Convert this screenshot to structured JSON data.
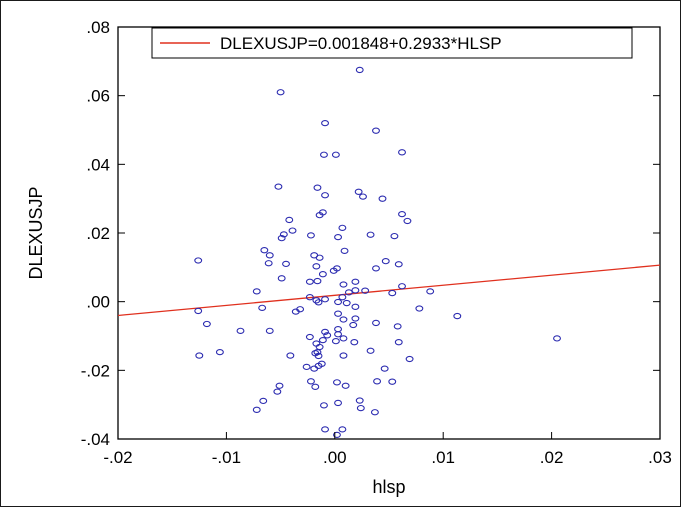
{
  "chart_data": {
    "type": "scatter",
    "xlabel": "hlsp",
    "ylabel": "DLEXUSJP",
    "xlim": [
      -0.02,
      0.03
    ],
    "ylim": [
      -0.04,
      0.08
    ],
    "xticks": [
      -0.02,
      -0.01,
      0.0,
      0.01,
      0.02,
      0.03
    ],
    "xtick_labels": [
      "-.02",
      "-.01",
      ".00",
      ".01",
      ".02",
      ".03"
    ],
    "yticks": [
      -0.04,
      -0.02,
      0.0,
      0.02,
      0.04,
      0.06,
      0.08
    ],
    "ytick_labels": [
      "-.04",
      "-.02",
      ".00",
      ".02",
      ".04",
      ".06",
      ".08"
    ],
    "grid": false,
    "legend_position": "top-right",
    "marker_color": "#2b2bb0",
    "line_color": "#e0301e",
    "fit_line": {
      "label": "DLEXUSJP=0.001848+0.2933*HLSP",
      "intercept": 0.001848,
      "slope": 0.2933
    },
    "points": [
      [
        0.0023,
        0.0675
      ],
      [
        -0.005,
        0.061
      ],
      [
        -0.0009,
        0.052
      ],
      [
        0.0038,
        0.0498
      ],
      [
        -0.001,
        0.0428
      ],
      [
        0.0001,
        0.0428
      ],
      [
        0.0062,
        0.0435
      ],
      [
        -0.0052,
        0.0335
      ],
      [
        -0.0016,
        0.0332
      ],
      [
        0.0022,
        0.032
      ],
      [
        -0.0009,
        0.031
      ],
      [
        0.0026,
        0.0306
      ],
      [
        0.0044,
        0.03
      ],
      [
        -0.0011,
        0.026
      ],
      [
        -0.0014,
        0.0252
      ],
      [
        0.0062,
        0.0255
      ],
      [
        -0.0042,
        0.0238
      ],
      [
        0.0067,
        0.0235
      ],
      [
        0.0007,
        0.0215
      ],
      [
        -0.0039,
        0.0207
      ],
      [
        -0.0047,
        0.0196
      ],
      [
        -0.0022,
        0.0193
      ],
      [
        0.0003,
        0.0188
      ],
      [
        0.0033,
        0.0195
      ],
      [
        0.0055,
        0.0191
      ],
      [
        -0.0049,
        0.0185
      ],
      [
        -0.0065,
        0.015
      ],
      [
        0.0009,
        0.0148
      ],
      [
        -0.006,
        0.0135
      ],
      [
        -0.0019,
        0.0135
      ],
      [
        -0.0014,
        0.0128
      ],
      [
        -0.0126,
        0.012
      ],
      [
        0.0047,
        0.0118
      ],
      [
        -0.0061,
        0.0112
      ],
      [
        -0.0045,
        0.011
      ],
      [
        0.0059,
        0.0109
      ],
      [
        -0.0017,
        0.0103
      ],
      [
        0.0038,
        0.0097
      ],
      [
        0.0002,
        0.0097
      ],
      [
        -0.0001,
        0.009
      ],
      [
        -0.0011,
        0.008
      ],
      [
        -0.0049,
        0.0068
      ],
      [
        0.0019,
        0.0058
      ],
      [
        0.0008,
        0.005
      ],
      [
        -0.0023,
        0.0058
      ],
      [
        -0.0016,
        0.006
      ],
      [
        0.0062,
        0.0045
      ],
      [
        -0.0072,
        0.003
      ],
      [
        0.0013,
        0.0027
      ],
      [
        0.0028,
        0.0032
      ],
      [
        0.0088,
        0.003
      ],
      [
        0.0019,
        0.0033
      ],
      [
        0.0053,
        0.0025
      ],
      [
        -0.0023,
        0.0013
      ],
      [
        -0.0009,
        0.0007
      ],
      [
        0.0007,
        0.0013
      ],
      [
        -0.0017,
        0.0004
      ],
      [
        -0.0015,
        -0.0002
      ],
      [
        0.0003,
        -0.0001
      ],
      [
        0.0011,
        -0.0004
      ],
      [
        -0.0067,
        -0.0018
      ],
      [
        -0.0032,
        -0.0022
      ],
      [
        -0.0036,
        -0.0029
      ],
      [
        0.0019,
        -0.0015
      ],
      [
        0.0078,
        -0.002
      ],
      [
        -0.0126,
        -0.0027
      ],
      [
        0.0003,
        -0.0035
      ],
      [
        0.0113,
        -0.0042
      ],
      [
        0.0019,
        -0.0049
      ],
      [
        0.0008,
        -0.0052
      ],
      [
        0.0038,
        -0.0062
      ],
      [
        -0.0118,
        -0.0065
      ],
      [
        0.0017,
        -0.0068
      ],
      [
        0.0058,
        -0.0072
      ],
      [
        0.0003,
        -0.008
      ],
      [
        -0.0087,
        -0.0085
      ],
      [
        -0.006,
        -0.0085
      ],
      [
        -0.0009,
        -0.0088
      ],
      [
        0.0003,
        -0.0095
      ],
      [
        -0.0007,
        -0.0098
      ],
      [
        -0.0023,
        -0.0103
      ],
      [
        0.0008,
        -0.0107
      ],
      [
        0.0205,
        -0.0107
      ],
      [
        0.0001,
        -0.0115
      ],
      [
        -0.0011,
        -0.0112
      ],
      [
        0.0018,
        -0.0118
      ],
      [
        0.0059,
        -0.0118
      ],
      [
        -0.0017,
        -0.0122
      ],
      [
        -0.0014,
        -0.0132
      ],
      [
        0.0033,
        -0.0143
      ],
      [
        -0.0106,
        -0.0147
      ],
      [
        -0.0016,
        -0.0147
      ],
      [
        -0.0018,
        -0.015
      ],
      [
        -0.0041,
        -0.0157
      ],
      [
        -0.0125,
        -0.0157
      ],
      [
        0.0008,
        -0.0157
      ],
      [
        -0.0015,
        -0.0158
      ],
      [
        0.0069,
        -0.0167
      ],
      [
        -0.0012,
        -0.0181
      ],
      [
        -0.0015,
        -0.0187
      ],
      [
        -0.0026,
        -0.019
      ],
      [
        -0.0019,
        -0.0195
      ],
      [
        0.0046,
        -0.0195
      ],
      [
        -0.0022,
        -0.0232
      ],
      [
        0.0002,
        -0.0235
      ],
      [
        0.0039,
        -0.0232
      ],
      [
        0.0053,
        -0.0233
      ],
      [
        0.001,
        -0.0245
      ],
      [
        -0.0051,
        -0.0245
      ],
      [
        -0.0018,
        -0.0248
      ],
      [
        -0.0053,
        -0.0262
      ],
      [
        0.0023,
        -0.0288
      ],
      [
        -0.0066,
        -0.0289
      ],
      [
        0.0003,
        -0.0295
      ],
      [
        -0.001,
        -0.0302
      ],
      [
        0.0024,
        -0.031
      ],
      [
        -0.0072,
        -0.0315
      ],
      [
        0.0037,
        -0.0322
      ],
      [
        -0.0009,
        -0.0372
      ],
      [
        0.0007,
        -0.0372
      ],
      [
        0.0002,
        -0.0388
      ]
    ]
  }
}
